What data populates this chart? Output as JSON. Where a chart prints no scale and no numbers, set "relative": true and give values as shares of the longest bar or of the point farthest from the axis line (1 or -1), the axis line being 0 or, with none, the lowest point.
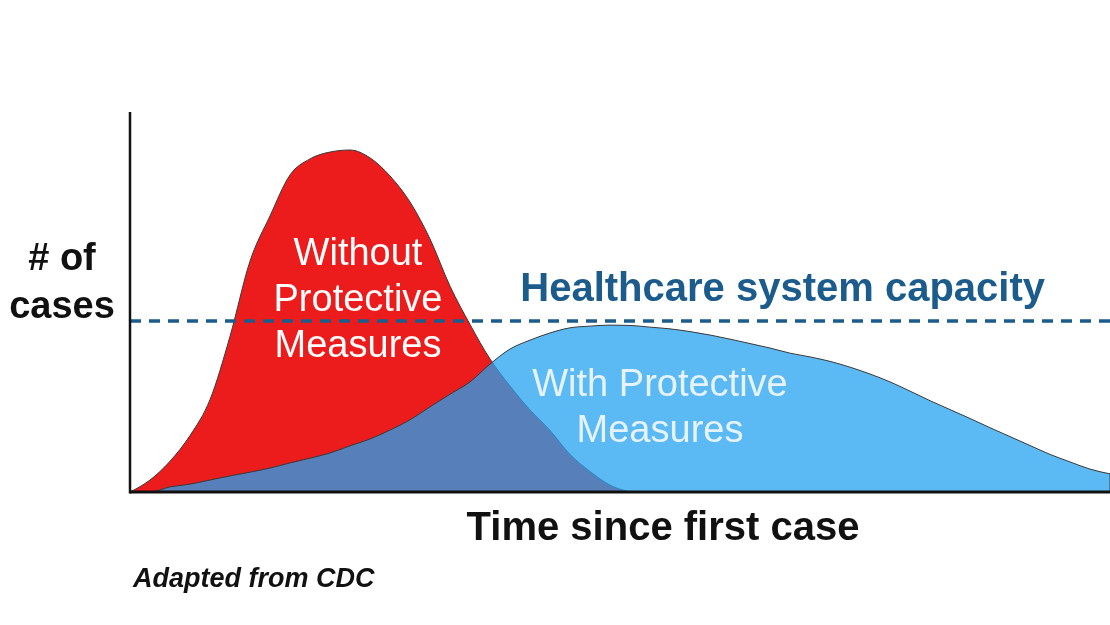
{
  "chart_data": {
    "type": "area",
    "relative": true,
    "xlabel": "Time since first case",
    "ylabel": "# of cases",
    "annotations": [
      "Adapted from CDC"
    ],
    "categories": [
      null,
      null,
      null,
      null,
      null,
      null,
      null,
      null,
      null,
      null,
      null,
      null,
      null,
      null,
      null,
      null,
      null,
      null,
      null,
      null,
      null,
      null,
      null,
      null,
      null,
      null,
      null,
      null,
      null,
      null,
      null,
      null,
      null,
      null,
      null,
      null,
      null,
      null,
      null,
      null,
      null,
      null,
      null,
      null,
      null,
      null,
      null,
      null,
      null,
      null
    ],
    "series": [
      {
        "name": "Without Protective Measures",
        "color": "#ed1c1c",
        "values": [
          0,
          0.035,
          0.09,
          0.165,
          0.27,
          0.455,
          0.675,
          0.807,
          0.927,
          0.974,
          0.994,
          1,
          0.977,
          0.924,
          0.848,
          0.74,
          0.602,
          0.49,
          0.389,
          0.31,
          0.24,
          0.18,
          0.11,
          0.06,
          0.02,
          0,
          null,
          null,
          null,
          null,
          null,
          null,
          null,
          null,
          null,
          null,
          null,
          null,
          null,
          null,
          null,
          null,
          null,
          null,
          null,
          null,
          null,
          null,
          null,
          null
        ]
      },
      {
        "name": "With Protective Measures",
        "color": "#5bb9f3",
        "values": [
          0,
          0,
          0.015,
          0.023,
          0.035,
          0.047,
          0.058,
          0.07,
          0.085,
          0.099,
          0.114,
          0.135,
          0.155,
          0.181,
          0.211,
          0.249,
          0.286,
          0.322,
          0.374,
          0.418,
          0.444,
          0.465,
          0.48,
          0.485,
          0.488,
          0.487,
          0.482,
          0.477,
          0.469,
          0.459,
          0.447,
          0.434,
          0.421,
          0.406,
          0.395,
          0.382,
          0.365,
          0.345,
          0.322,
          0.295,
          0.267,
          0.241,
          0.215,
          0.188,
          0.162,
          0.136,
          0.11,
          0.088,
          0.067,
          0.053
        ]
      }
    ],
    "ref_lines": [
      {
        "axis": "y",
        "value": 0.5,
        "label": "Healthcare system capacity",
        "color": "#1b5c8c",
        "line_style": "dashed"
      }
    ]
  }
}
